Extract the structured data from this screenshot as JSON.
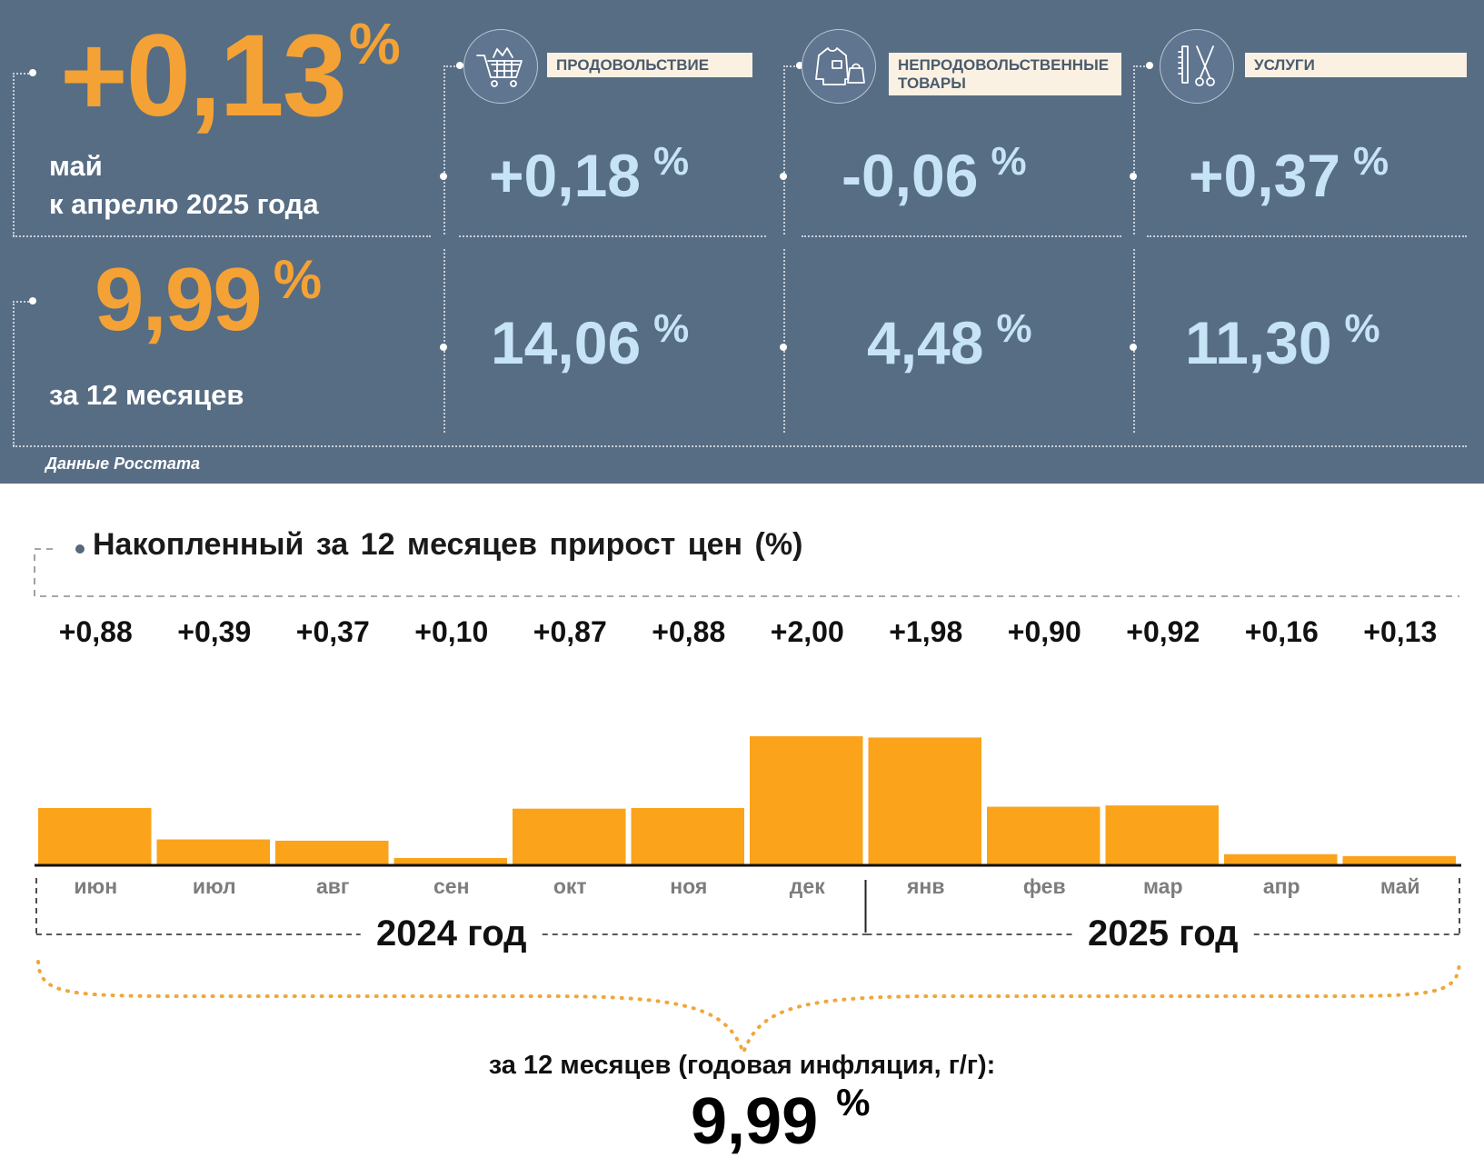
{
  "summary": {
    "monthly": {
      "value": "+0,13",
      "unit": "%",
      "line1": "май",
      "line2": "к апрелю 2025 года"
    },
    "yearly": {
      "value": "9,99",
      "unit": "%",
      "caption": "за 12 месяцев"
    }
  },
  "categories": [
    {
      "id": "food",
      "label": "ПРОДОВОЛЬСТВИЕ",
      "icon": "shopping-cart-icon",
      "monthly": "+0,18",
      "yearly": "14,06",
      "unit": "%"
    },
    {
      "id": "nonfood",
      "label": "НЕПРОДОВОЛЬСТВЕННЫЕ ТОВАРЫ",
      "icon": "clothing-icon",
      "monthly": "-0,06",
      "yearly": "4,48",
      "unit": "%"
    },
    {
      "id": "services",
      "label": "УСЛУГИ",
      "icon": "scissors-comb-icon",
      "monthly": "+0,37",
      "yearly": "11,30",
      "unit": "%"
    }
  ],
  "source": "Данные Росстата",
  "chart_data": {
    "type": "bar",
    "title": "Накопленный за 12 месяцев прирост цен (%)",
    "categories": [
      "июн",
      "июл",
      "авг",
      "сен",
      "окт",
      "ноя",
      "дек",
      "янв",
      "фев",
      "мар",
      "апр",
      "май"
    ],
    "values": [
      0.88,
      0.39,
      0.37,
      0.1,
      0.87,
      0.88,
      2.0,
      1.98,
      0.9,
      0.92,
      0.16,
      0.13
    ],
    "value_labels": [
      "+0,88",
      "+0,39",
      "+0,37",
      "+0,10",
      "+0,87",
      "+0,88",
      "+2,00",
      "+1,98",
      "+0,90",
      "+0,92",
      "+0,16",
      "+0,13"
    ],
    "groups": [
      {
        "label": "2024 год",
        "months": 7
      },
      {
        "label": "2025 год",
        "months": 5
      }
    ],
    "ylim": [
      0,
      2.0
    ],
    "bar_color": "#faa31b",
    "grid": false,
    "annual": {
      "caption": "за 12 месяцев (годовая инфляция, г/г):",
      "value": "9,99",
      "unit": "%"
    }
  },
  "colors": {
    "panel_bg": "#576d84",
    "accent_orange": "#f4a235",
    "value_blue": "#c6e4f5",
    "label_bg": "#fbf1e3",
    "brace": "#f0a73a"
  }
}
